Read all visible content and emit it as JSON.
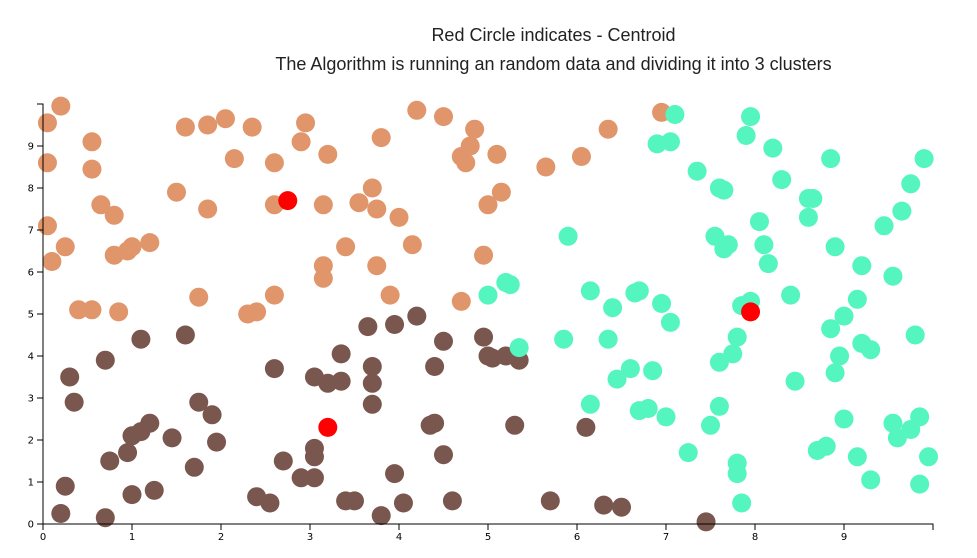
{
  "header": {
    "title_line1": "Red Circle indicates - Centroid",
    "title_line2": "The Algorithm is running an random data and dividing it into 3 clusters"
  },
  "chart_data": {
    "type": "scatter",
    "title": "Red Circle indicates - Centroid",
    "subtitle": "The Algorithm is running an random data and dividing it into 3 clusters",
    "xlabel": "",
    "ylabel": "",
    "xlim": [
      0,
      10
    ],
    "ylim": [
      0,
      10
    ],
    "x_ticks": [
      0,
      1,
      2,
      3,
      4,
      5,
      6,
      7,
      8,
      9
    ],
    "y_ticks": [
      0,
      1,
      2,
      3,
      4,
      5,
      6,
      7,
      8,
      9
    ],
    "grid": false,
    "colors": {
      "orange_cluster": "#e0956a",
      "brown_cluster": "#7a574e",
      "teal_cluster": "#55f5c0",
      "centroid": "#ff0000"
    },
    "series": [
      {
        "color": "#e0956a",
        "points": [
          [
            0.2,
            9.95
          ],
          [
            0.05,
            9.55
          ],
          [
            0.55,
            9.1
          ],
          [
            0.05,
            8.6
          ],
          [
            0.55,
            8.45
          ],
          [
            0.65,
            7.6
          ],
          [
            0.8,
            7.35
          ],
          [
            0.05,
            7.1
          ],
          [
            0.25,
            6.6
          ],
          [
            0.1,
            6.25
          ],
          [
            0.8,
            6.4
          ],
          [
            0.95,
            6.5
          ],
          [
            1.0,
            6.6
          ],
          [
            1.2,
            6.7
          ],
          [
            1.5,
            7.9
          ],
          [
            1.6,
            9.45
          ],
          [
            1.85,
            9.5
          ],
          [
            2.05,
            9.65
          ],
          [
            2.15,
            8.7
          ],
          [
            2.35,
            9.45
          ],
          [
            1.85,
            7.5
          ],
          [
            0.4,
            5.1
          ],
          [
            0.55,
            5.1
          ],
          [
            0.85,
            5.05
          ],
          [
            1.75,
            5.4
          ],
          [
            2.3,
            5.0
          ],
          [
            2.4,
            5.05
          ],
          [
            2.6,
            5.45
          ],
          [
            2.6,
            7.6
          ],
          [
            2.6,
            8.6
          ],
          [
            2.9,
            9.1
          ],
          [
            2.95,
            9.55
          ],
          [
            3.2,
            8.8
          ],
          [
            3.15,
            7.6
          ],
          [
            3.4,
            6.6
          ],
          [
            3.15,
            6.15
          ],
          [
            3.15,
            5.85
          ],
          [
            3.55,
            7.65
          ],
          [
            3.7,
            8.0
          ],
          [
            3.75,
            7.5
          ],
          [
            3.8,
            9.2
          ],
          [
            4.0,
            7.3
          ],
          [
            4.15,
            6.65
          ],
          [
            3.75,
            6.15
          ],
          [
            3.9,
            5.45
          ],
          [
            4.2,
            9.85
          ],
          [
            4.5,
            9.7
          ],
          [
            4.7,
            8.75
          ],
          [
            4.75,
            8.6
          ],
          [
            4.8,
            9.0
          ],
          [
            4.85,
            9.4
          ],
          [
            5.1,
            8.8
          ],
          [
            5.15,
            7.9
          ],
          [
            5.0,
            7.6
          ],
          [
            4.95,
            6.4
          ],
          [
            4.7,
            5.3
          ],
          [
            5.65,
            8.5
          ],
          [
            6.05,
            8.75
          ],
          [
            6.35,
            9.4
          ],
          [
            6.95,
            9.8
          ]
        ]
      },
      {
        "color": "#7a574e",
        "points": [
          [
            0.3,
            3.5
          ],
          [
            0.35,
            2.9
          ],
          [
            0.7,
            3.9
          ],
          [
            0.25,
            0.9
          ],
          [
            0.2,
            0.25
          ],
          [
            0.7,
            0.15
          ],
          [
            0.75,
            1.5
          ],
          [
            0.95,
            1.7
          ],
          [
            1.0,
            0.7
          ],
          [
            1.0,
            2.1
          ],
          [
            1.1,
            2.2
          ],
          [
            1.1,
            4.4
          ],
          [
            1.2,
            2.4
          ],
          [
            1.25,
            0.8
          ],
          [
            1.45,
            2.05
          ],
          [
            1.6,
            4.5
          ],
          [
            1.75,
            2.9
          ],
          [
            1.7,
            1.35
          ],
          [
            1.9,
            2.6
          ],
          [
            1.95,
            1.95
          ],
          [
            2.4,
            0.65
          ],
          [
            2.55,
            0.5
          ],
          [
            2.6,
            3.7
          ],
          [
            2.7,
            1.5
          ],
          [
            2.9,
            1.1
          ],
          [
            3.05,
            1.1
          ],
          [
            3.05,
            1.8
          ],
          [
            3.05,
            1.6
          ],
          [
            3.05,
            3.5
          ],
          [
            3.2,
            3.35
          ],
          [
            3.35,
            3.4
          ],
          [
            3.35,
            4.05
          ],
          [
            3.4,
            0.55
          ],
          [
            3.5,
            0.55
          ],
          [
            3.65,
            4.7
          ],
          [
            3.7,
            3.75
          ],
          [
            3.7,
            3.35
          ],
          [
            3.7,
            2.85
          ],
          [
            3.8,
            0.2
          ],
          [
            3.95,
            1.2
          ],
          [
            3.95,
            4.75
          ],
          [
            4.05,
            0.5
          ],
          [
            4.2,
            4.95
          ],
          [
            4.35,
            2.35
          ],
          [
            4.4,
            2.4
          ],
          [
            4.4,
            3.75
          ],
          [
            4.5,
            4.35
          ],
          [
            4.5,
            1.65
          ],
          [
            4.6,
            0.55
          ],
          [
            4.95,
            4.45
          ],
          [
            5.0,
            4.0
          ],
          [
            5.05,
            3.95
          ],
          [
            5.2,
            4.0
          ],
          [
            5.35,
            3.9
          ],
          [
            5.3,
            2.35
          ],
          [
            5.7,
            0.55
          ],
          [
            6.1,
            2.3
          ],
          [
            6.3,
            0.45
          ],
          [
            6.5,
            0.4
          ],
          [
            7.45,
            0.05
          ]
        ]
      },
      {
        "color": "#55f5c0",
        "points": [
          [
            5.0,
            5.45
          ],
          [
            5.2,
            5.75
          ],
          [
            5.25,
            5.7
          ],
          [
            5.35,
            4.2
          ],
          [
            5.85,
            4.4
          ],
          [
            5.9,
            6.85
          ],
          [
            6.15,
            5.55
          ],
          [
            6.15,
            2.85
          ],
          [
            6.35,
            4.4
          ],
          [
            6.4,
            5.15
          ],
          [
            6.45,
            3.45
          ],
          [
            6.6,
            3.7
          ],
          [
            6.65,
            5.5
          ],
          [
            6.7,
            5.55
          ],
          [
            6.7,
            2.7
          ],
          [
            6.8,
            2.75
          ],
          [
            6.85,
            3.65
          ],
          [
            6.9,
            9.05
          ],
          [
            6.95,
            5.25
          ],
          [
            7.0,
            2.55
          ],
          [
            7.05,
            4.8
          ],
          [
            7.05,
            9.1
          ],
          [
            7.1,
            9.75
          ],
          [
            7.25,
            1.7
          ],
          [
            7.35,
            8.4
          ],
          [
            7.5,
            2.35
          ],
          [
            7.55,
            6.85
          ],
          [
            7.6,
            8.0
          ],
          [
            7.6,
            3.85
          ],
          [
            7.6,
            2.8
          ],
          [
            7.65,
            6.55
          ],
          [
            7.7,
            6.65
          ],
          [
            7.65,
            7.95
          ],
          [
            7.75,
            4.05
          ],
          [
            7.8,
            4.45
          ],
          [
            7.8,
            1.45
          ],
          [
            7.8,
            1.2
          ],
          [
            7.85,
            5.2
          ],
          [
            7.85,
            0.5
          ],
          [
            7.9,
            9.25
          ],
          [
            7.95,
            5.3
          ],
          [
            7.95,
            9.7
          ],
          [
            8.05,
            7.2
          ],
          [
            8.1,
            6.65
          ],
          [
            8.15,
            6.2
          ],
          [
            8.2,
            8.95
          ],
          [
            8.3,
            8.2
          ],
          [
            8.4,
            5.45
          ],
          [
            8.45,
            3.4
          ],
          [
            8.6,
            7.3
          ],
          [
            8.6,
            7.75
          ],
          [
            8.65,
            7.75
          ],
          [
            8.7,
            1.75
          ],
          [
            8.8,
            1.85
          ],
          [
            8.85,
            4.65
          ],
          [
            8.85,
            8.7
          ],
          [
            8.9,
            6.6
          ],
          [
            8.9,
            3.6
          ],
          [
            8.95,
            4.0
          ],
          [
            9.0,
            4.95
          ],
          [
            9.0,
            2.5
          ],
          [
            9.15,
            5.35
          ],
          [
            9.15,
            1.6
          ],
          [
            9.2,
            4.3
          ],
          [
            9.2,
            6.15
          ],
          [
            9.3,
            4.15
          ],
          [
            9.3,
            1.05
          ],
          [
            9.45,
            7.1
          ],
          [
            9.55,
            5.9
          ],
          [
            9.55,
            2.4
          ],
          [
            9.6,
            2.05
          ],
          [
            9.65,
            7.45
          ],
          [
            9.75,
            8.1
          ],
          [
            9.75,
            2.25
          ],
          [
            9.8,
            4.5
          ],
          [
            9.85,
            2.55
          ],
          [
            9.85,
            0.95
          ],
          [
            9.9,
            8.7
          ],
          [
            9.95,
            1.6
          ]
        ]
      },
      {
        "color": "#ff0000",
        "points": [
          [
            2.75,
            7.7
          ],
          [
            3.2,
            2.3
          ],
          [
            7.95,
            5.05
          ]
        ]
      }
    ]
  }
}
